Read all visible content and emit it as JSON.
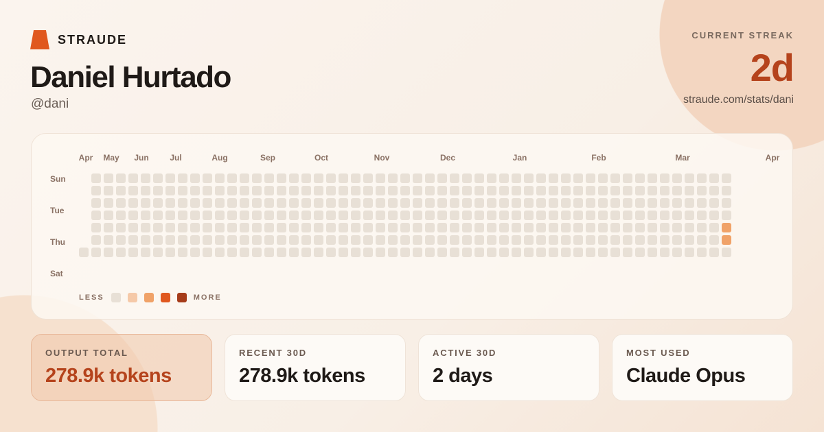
{
  "brand": {
    "name": "STRAUDE",
    "color": "#e0581f"
  },
  "profile": {
    "name": "Daniel Hurtado",
    "handle": "@dani"
  },
  "streak": {
    "label": "CURRENT STREAK",
    "value": "2d",
    "url": "straude.com/stats/dani"
  },
  "heatmap": {
    "months": [
      "Apr",
      "May",
      "Jun",
      "Jul",
      "Aug",
      "Sep",
      "Oct",
      "Nov",
      "Dec",
      "Jan",
      "Feb",
      "Mar",
      "Apr"
    ],
    "day_labels": [
      "Sun",
      "Tue",
      "Thu",
      "Sat"
    ],
    "weeks": 53,
    "first_week_first_day": 6,
    "level_colors": [
      "#e8e0d6",
      "#f5c9a8",
      "#f0a268",
      "#e0581f",
      "#a63c1a"
    ],
    "active": [
      {
        "week": 52,
        "day": 4,
        "level": 2
      },
      {
        "week": 52,
        "day": 5,
        "level": 2
      }
    ],
    "legend": {
      "less": "LESS",
      "more": "MORE"
    }
  },
  "stats": [
    {
      "label": "OUTPUT TOTAL",
      "value": "278.9k tokens",
      "highlight": true
    },
    {
      "label": "RECENT 30D",
      "value": "278.9k tokens"
    },
    {
      "label": "ACTIVE 30D",
      "value": "2 days"
    },
    {
      "label": "MOST USED",
      "value": "Claude Opus"
    }
  ]
}
